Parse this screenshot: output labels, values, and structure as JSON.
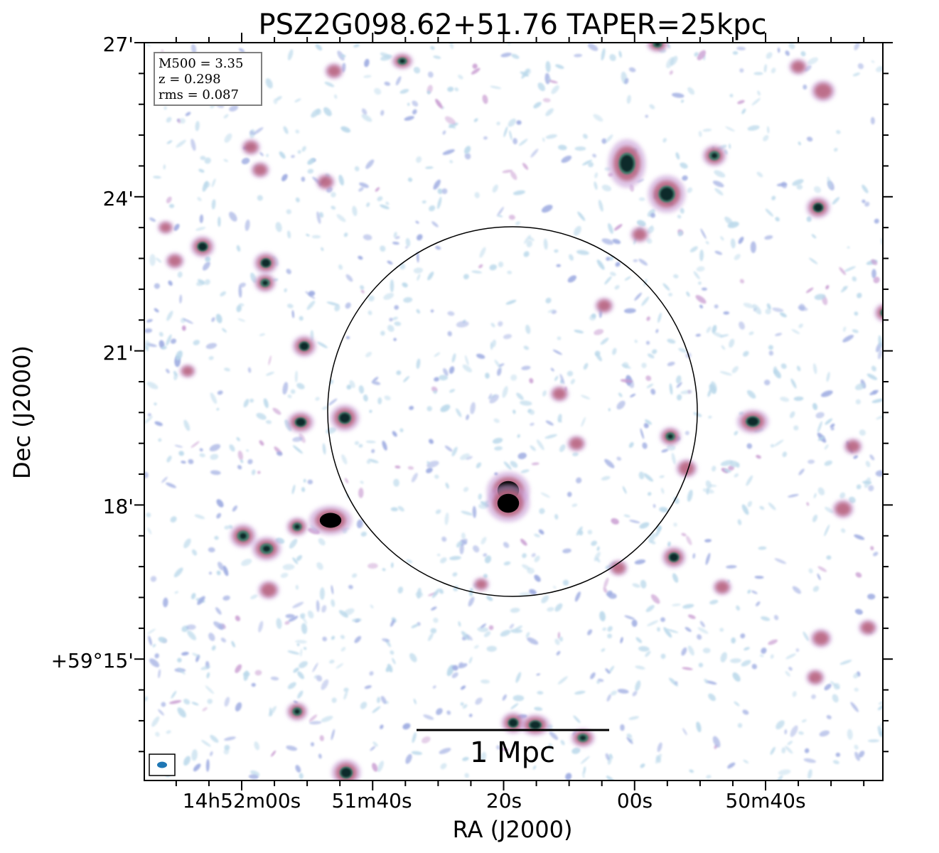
{
  "title": "PSZ2G098.62+51.76 TAPER=25kpc",
  "axes": {
    "xlabel": "RA (J2000)",
    "ylabel": "Dec (J2000)",
    "xticks": [
      "14h52m00s",
      "51m40s",
      "20s",
      "00s",
      "50m40s"
    ],
    "yticks": [
      "27'",
      "24'",
      "21'",
      "18'",
      "+59°15'"
    ]
  },
  "info_box": {
    "line1": "M500 = 3.35",
    "line2": "z = 0.298",
    "line3": "rms = 0.087"
  },
  "scalebar": {
    "label": "1 Mpc"
  },
  "colors": {
    "noise_light": "#b9d8ea",
    "noise_mid": "#9aa8e0",
    "source_halo": "#b8607a",
    "source_core": "#0c2a2a",
    "beam": "#1f77b4",
    "circle": "#000000"
  }
}
